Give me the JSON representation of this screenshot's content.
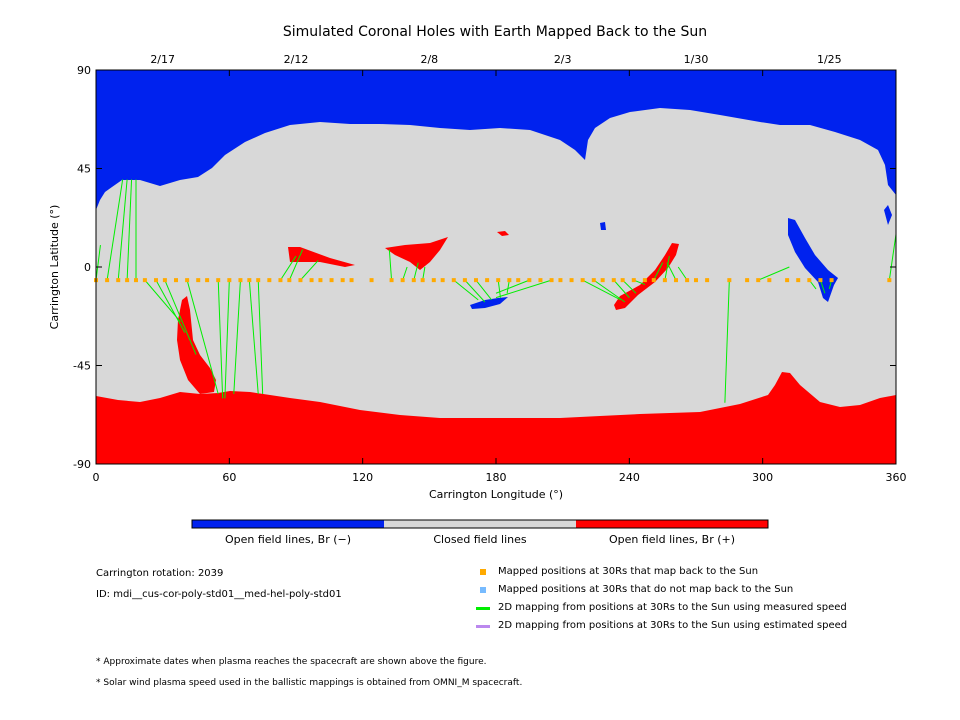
{
  "chart_data": {
    "type": "heatmap",
    "title": "Simulated Coronal Holes with Earth Mapped Back to the Sun",
    "xlabel": "Carrington Longitude (°)",
    "ylabel": "Carrington Latitude (°)",
    "xlim": [
      0,
      360
    ],
    "ylim": [
      -90,
      90
    ],
    "x_ticks": [
      "0",
      "60",
      "120",
      "180",
      "240",
      "300",
      "360"
    ],
    "y_ticks": [
      "90",
      "45",
      "0",
      "-45",
      "-90"
    ],
    "x_tick_values": [
      0,
      60,
      120,
      180,
      240,
      300,
      360
    ],
    "y_tick_values": [
      90,
      45,
      0,
      -45,
      -90
    ],
    "top_dates": [
      {
        "label": "2/17",
        "lon": 30
      },
      {
        "label": "2/12",
        "lon": 90
      },
      {
        "label": "2/8",
        "lon": 150
      },
      {
        "label": "2/3",
        "lon": 210
      },
      {
        "label": "1/30",
        "lon": 270
      },
      {
        "label": "1/25",
        "lon": 330
      }
    ],
    "colorbar": [
      {
        "label": "Open field lines, Br (−)",
        "color": "#0022ee"
      },
      {
        "label": "Closed field lines",
        "color": "#d8d8d8"
      },
      {
        "label": "Open field lines, Br (+)",
        "color": "#ff0000"
      }
    ],
    "mapped_lat": -6,
    "mapped_positions": [
      0,
      5,
      10,
      14,
      18,
      22,
      27,
      31,
      36,
      41,
      46,
      50,
      55,
      60,
      65,
      69,
      73,
      78,
      83,
      87,
      92,
      97,
      101,
      106,
      111,
      115,
      124,
      133,
      138,
      143,
      147,
      152,
      156,
      161,
      166,
      171,
      176,
      181,
      186,
      190,
      195,
      200,
      205,
      209,
      214,
      219,
      224,
      228,
      233,
      237,
      242,
      247,
      251,
      256,
      261,
      266,
      270,
      275,
      285,
      293,
      298,
      303,
      311,
      316,
      321,
      326,
      331,
      357
    ],
    "mapping_lines": [
      {
        "from": 0,
        "to_lon": 2,
        "to_lat": 10
      },
      {
        "from": 5,
        "to_lon": 12,
        "to_lat": 40
      },
      {
        "from": 10,
        "to_lon": 14,
        "to_lat": 40
      },
      {
        "from": 14,
        "to_lon": 16,
        "to_lat": 40
      },
      {
        "from": 18,
        "to_lon": 18,
        "to_lat": 40
      },
      {
        "from": 22,
        "to_lon": 38,
        "to_lat": -25
      },
      {
        "from": 27,
        "to_lon": 40,
        "to_lat": -30
      },
      {
        "from": 31,
        "to_lon": 45,
        "to_lat": -40
      },
      {
        "from": 41,
        "to_lon": 55,
        "to_lat": -58
      },
      {
        "from": 55,
        "to_lon": 57,
        "to_lat": -60
      },
      {
        "from": 60,
        "to_lon": 58,
        "to_lat": -60
      },
      {
        "from": 65,
        "to_lon": 62,
        "to_lat": -58
      },
      {
        "from": 69,
        "to_lon": 73,
        "to_lat": -58
      },
      {
        "from": 73,
        "to_lon": 75,
        "to_lat": -58
      },
      {
        "from": 83,
        "to_lon": 90,
        "to_lat": 5
      },
      {
        "from": 87,
        "to_lon": 93,
        "to_lat": 8
      },
      {
        "from": 92,
        "to_lon": 100,
        "to_lat": 3
      },
      {
        "from": 133,
        "to_lon": 132,
        "to_lat": 8
      },
      {
        "from": 138,
        "to_lon": 140,
        "to_lat": 0
      },
      {
        "from": 143,
        "to_lon": 145,
        "to_lat": 2
      },
      {
        "from": 147,
        "to_lon": 148,
        "to_lat": 0
      },
      {
        "from": 161,
        "to_lon": 172,
        "to_lat": -15
      },
      {
        "from": 166,
        "to_lon": 175,
        "to_lat": -16
      },
      {
        "from": 171,
        "to_lon": 178,
        "to_lat": -15
      },
      {
        "from": 181,
        "to_lon": 182,
        "to_lat": -14
      },
      {
        "from": 186,
        "to_lon": 185,
        "to_lat": -12
      },
      {
        "from": 195,
        "to_lon": 180,
        "to_lat": -12
      },
      {
        "from": 205,
        "to_lon": 180,
        "to_lat": -14
      },
      {
        "from": 219,
        "to_lon": 236,
        "to_lat": -15
      },
      {
        "from": 224,
        "to_lon": 238,
        "to_lat": -16
      },
      {
        "from": 233,
        "to_lon": 240,
        "to_lat": -14
      },
      {
        "from": 237,
        "to_lon": 243,
        "to_lat": -12
      },
      {
        "from": 242,
        "to_lon": 247,
        "to_lat": -8
      },
      {
        "from": 251,
        "to_lon": 255,
        "to_lat": 2
      },
      {
        "from": 256,
        "to_lon": 258,
        "to_lat": 5
      },
      {
        "from": 261,
        "to_lon": 257,
        "to_lat": 2
      },
      {
        "from": 266,
        "to_lon": 262,
        "to_lat": 0
      },
      {
        "from": 285,
        "to_lon": 283,
        "to_lat": -62
      },
      {
        "from": 298,
        "to_lon": 312,
        "to_lat": 0
      },
      {
        "from": 321,
        "to_lon": 324,
        "to_lat": -10
      },
      {
        "from": 326,
        "to_lon": 328,
        "to_lat": -12
      },
      {
        "from": 331,
        "to_lon": 330,
        "to_lat": -10
      },
      {
        "from": 357,
        "to_lon": 360,
        "to_lat": 15
      }
    ]
  },
  "info": {
    "rotation": "Carrington rotation: 2039",
    "id": "ID: mdi__cus-cor-poly-std01__med-hel-poly-std01"
  },
  "legend": [
    {
      "label": "Mapped positions at 30Rs that map back to the Sun",
      "color": "#ffaa00",
      "kind": "square"
    },
    {
      "label": "Mapped positions at 30Rs that do not map back to the Sun",
      "color": "#77bbff",
      "kind": "square"
    },
    {
      "label": "2D mapping from positions at 30Rs to the Sun using measured speed",
      "color": "#00ee00",
      "kind": "line"
    },
    {
      "label": "2D mapping from positions at 30Rs to the Sun using estimated speed",
      "color": "#bb88ee",
      "kind": "line"
    }
  ],
  "footnotes": [
    "* Approximate dates when plasma reaches the spacecraft are shown above the figure.",
    "* Solar wind plasma speed used in the ballistic mappings is obtained from OMNI_M spacecraft."
  ]
}
